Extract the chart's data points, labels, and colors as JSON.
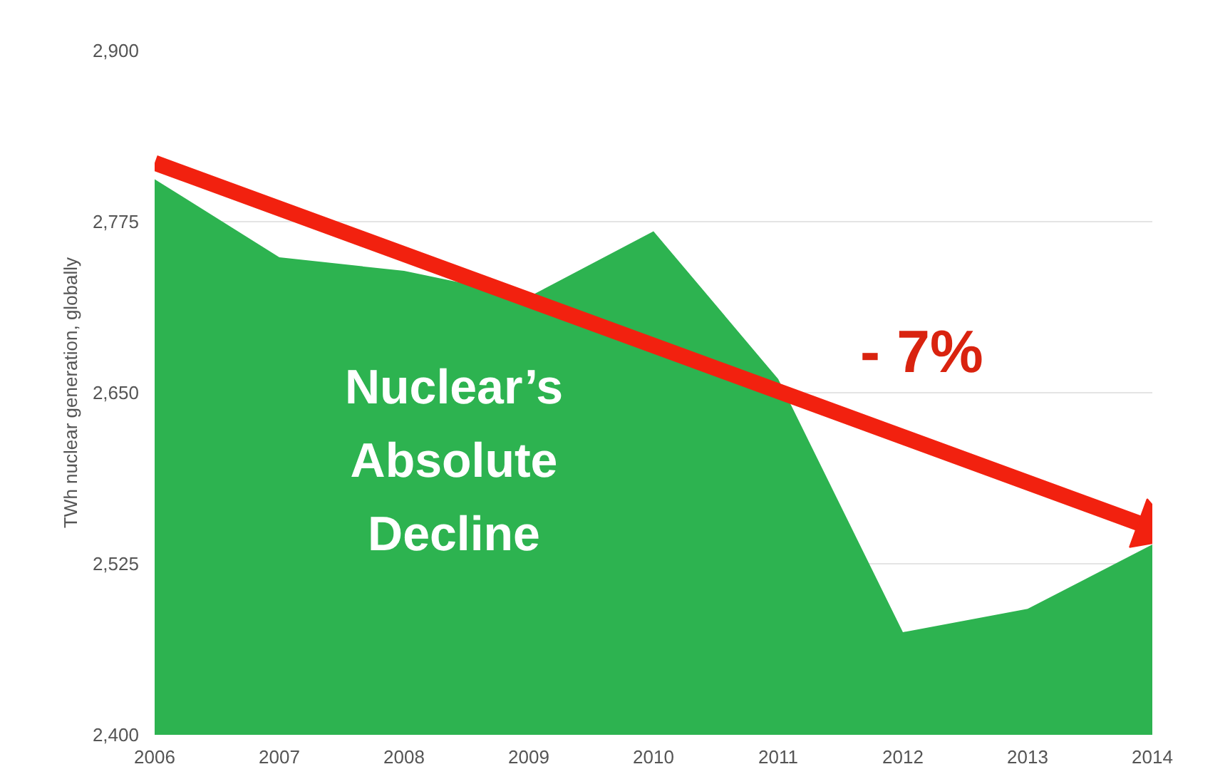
{
  "chart_data": {
    "type": "area",
    "ylabel": "TWh nuclear generation, globally",
    "x": [
      2006,
      2007,
      2008,
      2009,
      2010,
      2011,
      2012,
      2013,
      2014
    ],
    "series": [
      {
        "color": "#2db350",
        "values": [
          2806,
          2749,
          2739,
          2720,
          2768,
          2660,
          2475,
          2492,
          2539
        ]
      },
      {
        "type": "line",
        "color": "#f2210f",
        "x": [
          2006,
          2014
        ],
        "values": [
          2818,
          2551
        ]
      }
    ],
    "xlim": [
      2006,
      2014
    ],
    "xticks": [
      2006,
      2007,
      2008,
      2009,
      2010,
      2011,
      2012,
      2013,
      2014
    ],
    "ylim": [
      2400,
      2900
    ],
    "yticks": [
      {
        "value": 2400,
        "label": "2,400"
      },
      {
        "value": 2525,
        "label": "2,525"
      },
      {
        "value": 2650,
        "label": "2,650"
      },
      {
        "value": 2775,
        "label": "2,775"
      },
      {
        "value": 2900,
        "label": "2,900"
      }
    ],
    "grid": "y",
    "annotations": [
      "Nuclear’s Absolute Decline",
      "- 7%"
    ]
  }
}
